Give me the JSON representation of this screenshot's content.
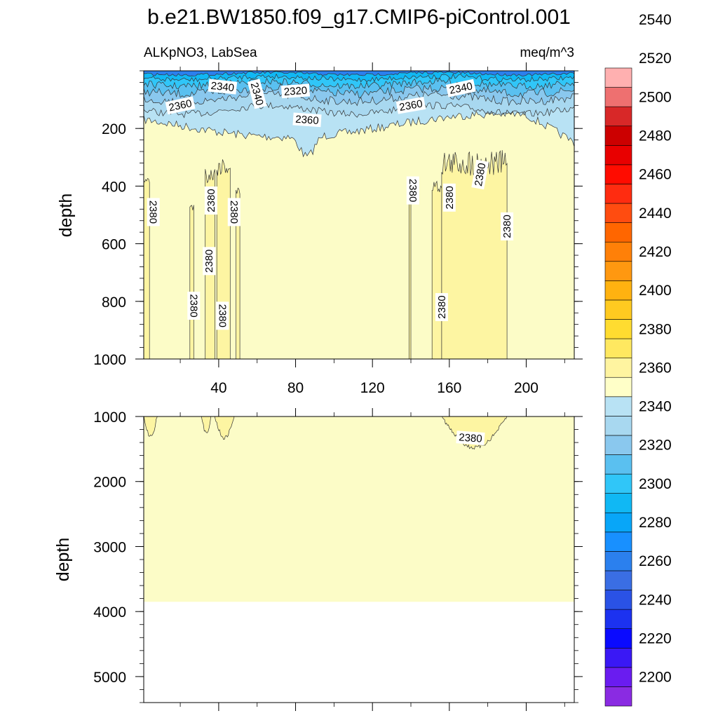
{
  "chart_data": {
    "type": "heatmap",
    "title": "b.e21.BW1850.f09_g17.CMIP6-piControl.001",
    "variable_label": "ALKpNO3, LabSea",
    "units_label": "meq/m^3",
    "panels": [
      {
        "ylabel": "depth",
        "ylim": [
          0,
          1000
        ],
        "y_reversed": true,
        "y_ticks": [
          200,
          400,
          600,
          800,
          1000
        ],
        "y_tick_labels": [
          "200",
          "400",
          "600",
          "800",
          "1000"
        ],
        "x_ticks": [
          40,
          80,
          120,
          160,
          200
        ],
        "x_tick_labels": [
          "40",
          "80",
          "120",
          "160",
          "200"
        ],
        "contour_labels": [
          {
            "text": "2340",
            "x": 42,
            "y": 55,
            "angle": 6
          },
          {
            "text": "2340",
            "x": 60,
            "y": 80,
            "angle": 75
          },
          {
            "text": "2320",
            "x": 80,
            "y": 70,
            "angle": -4
          },
          {
            "text": "2360",
            "x": 20,
            "y": 120,
            "angle": -12
          },
          {
            "text": "2360",
            "x": 86,
            "y": 170,
            "angle": 4
          },
          {
            "text": "2360",
            "x": 140,
            "y": 120,
            "angle": -10
          },
          {
            "text": "2340",
            "x": 166,
            "y": 60,
            "angle": -12
          },
          {
            "text": "2380",
            "x": 6,
            "y": 490,
            "angle": 90
          },
          {
            "text": "2380",
            "x": 36,
            "y": 450,
            "angle": -90
          },
          {
            "text": "2380",
            "x": 48,
            "y": 490,
            "angle": 90
          },
          {
            "text": "2380",
            "x": 35,
            "y": 660,
            "angle": -90
          },
          {
            "text": "2380",
            "x": 27,
            "y": 815,
            "angle": 90
          },
          {
            "text": "2380",
            "x": 42,
            "y": 850,
            "angle": 90
          },
          {
            "text": "2380",
            "x": 141,
            "y": 415,
            "angle": 90
          },
          {
            "text": "2380",
            "x": 160,
            "y": 440,
            "angle": -90
          },
          {
            "text": "2380",
            "x": 176,
            "y": 360,
            "angle": -80
          },
          {
            "text": "2380",
            "x": 190,
            "y": 540,
            "angle": -90
          },
          {
            "text": "2380",
            "x": 156,
            "y": 820,
            "angle": -90
          }
        ]
      },
      {
        "ylabel": "depth",
        "ylim": [
          1000,
          5400
        ],
        "y_reversed": true,
        "y_ticks": [
          1000,
          2000,
          3000,
          4000,
          5000
        ],
        "y_tick_labels": [
          "1000",
          "2000",
          "3000",
          "4000",
          "5000"
        ],
        "x_ticks": [
          40,
          80,
          120,
          160,
          200
        ],
        "ocean_bottom_depth": 3850,
        "contour_labels": [
          {
            "text": "2380",
            "x": 171,
            "y": 1330,
            "angle": 4
          }
        ]
      }
    ],
    "x_range": [
      1,
      225
    ],
    "colorbar": {
      "levels_start": 2190,
      "level_step": 10,
      "tick_labels": [
        "2200",
        "2220",
        "2240",
        "2260",
        "2280",
        "2300",
        "2320",
        "2340",
        "2360",
        "2380",
        "2400",
        "2420",
        "2440",
        "2460",
        "2480",
        "2500",
        "2520",
        "2540"
      ],
      "colors": [
        "#8a2be2",
        "#6a1cf0",
        "#3a18f5",
        "#0a0aff",
        "#1c32f0",
        "#2a52e6",
        "#3a6ee4",
        "#2b80ee",
        "#1890ff",
        "#08a6f8",
        "#10b8f4",
        "#30c6f8",
        "#5ac0f0",
        "#8ac8ee",
        "#a8d8f0",
        "#b8e2f4",
        "#ffffc8",
        "#fff4a0",
        "#ffe860",
        "#ffdc30",
        "#ffca20",
        "#ffb210",
        "#ff9810",
        "#ff8008",
        "#ff6600",
        "#ff4c10",
        "#ff2c10",
        "#ff0c00",
        "#e80000",
        "#cc0000",
        "#d82828",
        "#ee7070",
        "#ffb0b0"
      ]
    },
    "colors": {
      "background_fill": "#fcfcc7",
      "core_fill": "#fdf5a2",
      "upper_fill": "#b8e2f4",
      "land_fill": "#ffffff"
    }
  }
}
